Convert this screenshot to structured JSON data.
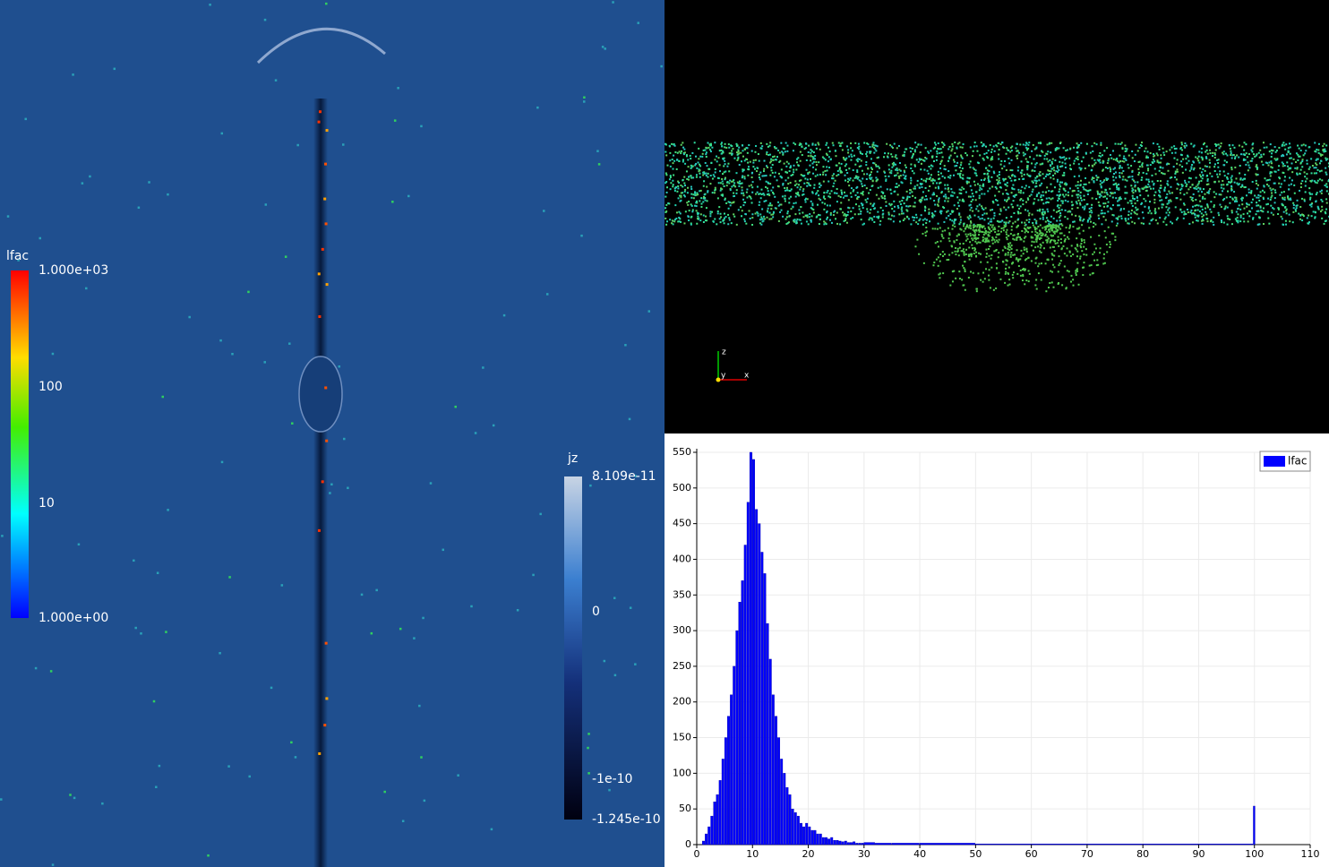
{
  "left_view": {
    "lfac_bar": {
      "title": "lfac",
      "labels": [
        "1.000e+03",
        "100",
        "10",
        "1.000e+00"
      ]
    },
    "jz_bar": {
      "title": "jz",
      "labels": [
        "8.109e-11",
        "0",
        "-1e-10",
        "-1.245e-10"
      ]
    }
  },
  "top_view": {
    "axes": [
      "z",
      "y",
      "x"
    ]
  },
  "chart_data": {
    "type": "histogram",
    "bins": [
      1,
      1.5,
      2,
      2.5,
      3,
      3.5,
      4,
      4.5,
      5,
      5.5,
      6,
      6.5,
      7,
      7.5,
      8,
      8.5,
      9,
      9.5,
      10,
      10.5,
      11,
      11.5,
      12,
      12.5,
      13,
      13.5,
      14,
      14.5,
      15,
      15.5,
      16,
      16.5,
      17,
      17.5,
      18,
      18.5,
      19,
      19.5,
      20,
      20.5,
      21,
      21.5,
      22,
      22.5,
      23,
      23.5,
      24,
      24.5,
      25,
      25.5,
      26,
      26.5,
      27,
      27.5,
      28,
      28.5,
      29,
      29.5,
      30,
      32,
      35,
      40,
      50,
      60,
      70,
      80,
      90,
      99.8,
      100.2,
      110
    ],
    "values": [
      5,
      15,
      25,
      40,
      60,
      70,
      90,
      120,
      150,
      180,
      210,
      250,
      300,
      340,
      370,
      420,
      480,
      550,
      540,
      470,
      450,
      410,
      380,
      310,
      260,
      210,
      180,
      150,
      120,
      100,
      80,
      70,
      50,
      45,
      40,
      30,
      25,
      30,
      25,
      20,
      20,
      15,
      15,
      10,
      10,
      8,
      10,
      6,
      6,
      5,
      4,
      5,
      3,
      3,
      4,
      2,
      2,
      2,
      3,
      2,
      2,
      2,
      1,
      1,
      1,
      1,
      1,
      54,
      0
    ],
    "series_name": "lfac",
    "color": "#0000ff",
    "xlim": [
      0,
      110
    ],
    "xticks": [
      0,
      10,
      20,
      30,
      40,
      50,
      60,
      70,
      80,
      90,
      100,
      110
    ],
    "ylim": [
      0,
      550
    ],
    "yticks": [
      0,
      50,
      100,
      150,
      200,
      250,
      300,
      350,
      400,
      450,
      500,
      550
    ],
    "grid": true,
    "legend": "top-right"
  }
}
